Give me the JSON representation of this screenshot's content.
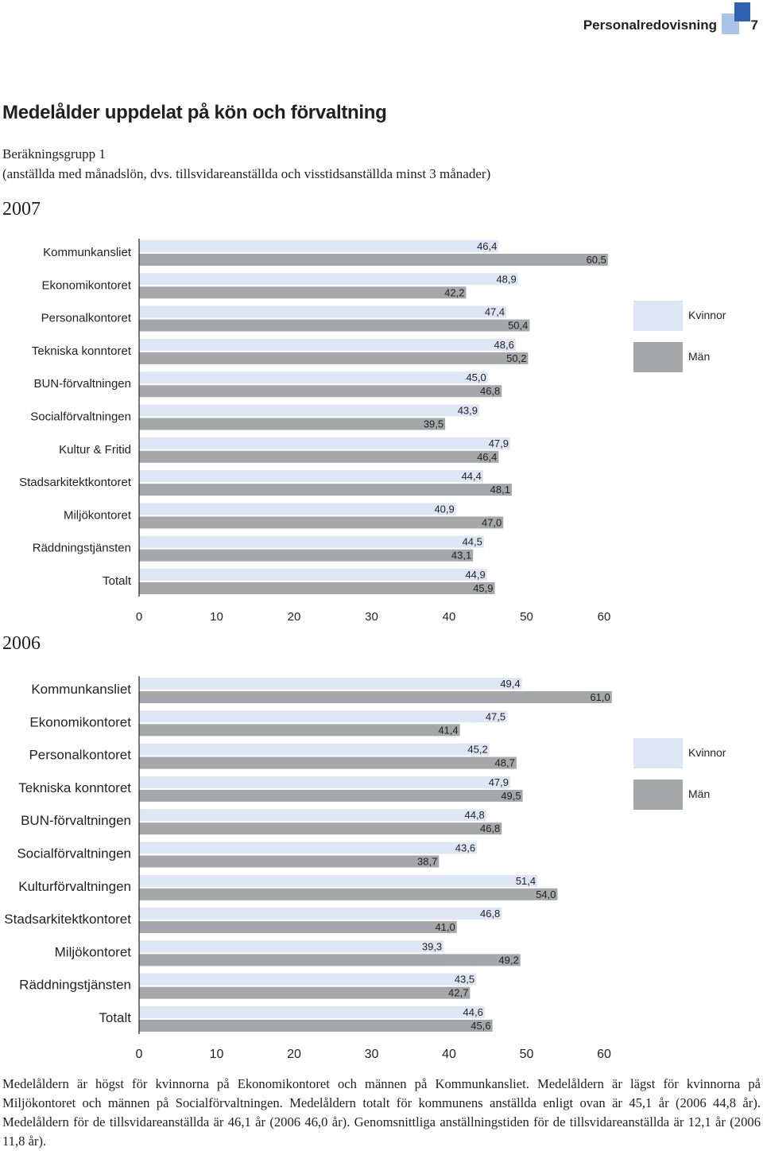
{
  "header": {
    "title": "Personalredovisning",
    "page_number": "7"
  },
  "title": "Medelålder uppdelat på kön och förvaltning",
  "subtitle_line1": "Beräkningsgrupp 1",
  "subtitle_line2": "(anställda med månadslön, dvs. tillsvidareanställda och visstidsanställda minst 3 månader)",
  "colors": {
    "kvinnor": "#dde6f5",
    "man": "#a5a7aa",
    "axis": "#231f20",
    "accent_light": "#a9c4e8",
    "accent_dark": "#2f63b0"
  },
  "chart_data": [
    {
      "type": "bar",
      "title": "2007",
      "orientation": "horizontal",
      "categories": [
        "Kommunkansliet",
        "Ekonomikontoret",
        "Personalkontoret",
        "Tekniska konntoret",
        "BUN-förvaltningen",
        "Socialförvaltningen",
        "Kultur & Fritid",
        "Stadsarkitektkontoret",
        "Miljökontoret",
        "Räddningstjänsten",
        "Totalt"
      ],
      "series": [
        {
          "name": "Kvinnor",
          "values": [
            46.4,
            48.9,
            47.4,
            48.6,
            45.0,
            43.9,
            47.9,
            44.4,
            40.9,
            44.5,
            44.9
          ],
          "labels": [
            "46,4",
            "48,9",
            "47,4",
            "48,6",
            "45,0",
            "43,9",
            "47,9",
            "44,4",
            "40,9",
            "44,5",
            "44,9"
          ]
        },
        {
          "name": "Män",
          "values": [
            60.5,
            42.2,
            50.4,
            50.2,
            46.8,
            39.5,
            46.4,
            48.1,
            47.0,
            43.1,
            45.9
          ],
          "labels": [
            "60,5",
            "42,2",
            "50,4",
            "50,2",
            "46,8",
            "39,5",
            "46,4",
            "48,1",
            "47,0",
            "43,1",
            "45,9"
          ]
        }
      ],
      "xlim": [
        0,
        60
      ],
      "ticks": [
        "0",
        "10",
        "20",
        "30",
        "40",
        "50",
        "60"
      ],
      "legend": [
        "Kvinnor",
        "Män"
      ],
      "legend_position": "right"
    },
    {
      "type": "bar",
      "title": "2006",
      "orientation": "horizontal",
      "categories": [
        "Kommunkansliet",
        "Ekonomikontoret",
        "Personalkontoret",
        "Tekniska konntoret",
        "BUN-förvaltningen",
        "Socialförvaltningen",
        "Kulturförvaltningen",
        "Stadsarkitektkontoret",
        "Miljökontoret",
        "Räddningstjänsten",
        "Totalt"
      ],
      "series": [
        {
          "name": "Kvinnor",
          "values": [
            49.4,
            47.5,
            45.2,
            47.9,
            44.8,
            43.6,
            51.4,
            46.8,
            39.3,
            43.5,
            44.6
          ],
          "labels": [
            "49,4",
            "47,5",
            "45,2",
            "47,9",
            "44,8",
            "43,6",
            "51,4",
            "46,8",
            "39,3",
            "43,5",
            "44,6"
          ]
        },
        {
          "name": "Män",
          "values": [
            61.0,
            41.4,
            48.7,
            49.5,
            46.8,
            38.7,
            54.0,
            41.0,
            49.2,
            42.7,
            45.6
          ],
          "labels": [
            "61,0",
            "41,4",
            "48,7",
            "49,5",
            "46,8",
            "38,7",
            "54,0",
            "41,0",
            "49,2",
            "42,7",
            "45,6"
          ]
        }
      ],
      "xlim": [
        0,
        60
      ],
      "ticks": [
        "0",
        "10",
        "20",
        "30",
        "40",
        "50",
        "60"
      ],
      "legend": [
        "Kvinnor",
        "Män"
      ],
      "legend_position": "right"
    }
  ],
  "footer": "Medelåldern är högst för kvinnorna på Ekonomikontoret och männen på Kommunkansliet. Medelåldern är lägst för kvinnorna på Miljökontoret och männen på Socialförvaltningen. Medelåldern totalt för kommunens anställda enligt ovan är 45,1 år (2006 44,8 år). Medelåldern för de tillsvidareanställda är 46,1 år (2006 46,0 år). Genomsnittliga anställningstiden för de tillsvidareanställda är 12,1 år (2006 11,8 år)."
}
